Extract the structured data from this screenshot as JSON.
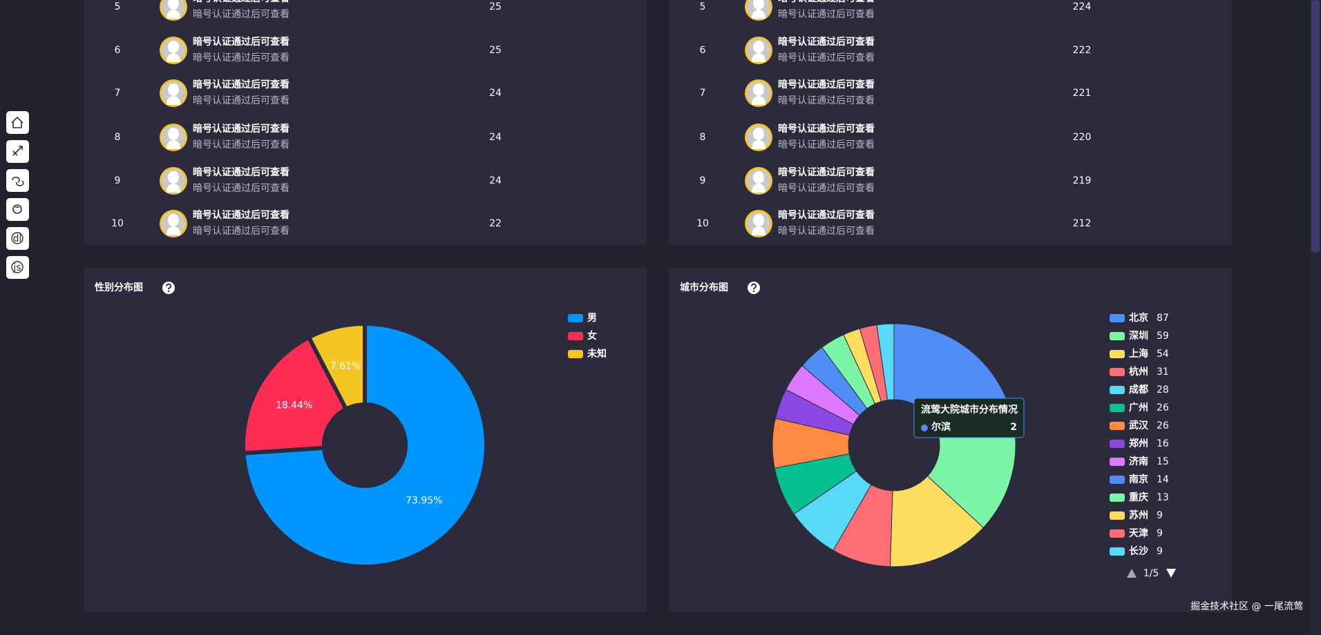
{
  "tables": [
    {
      "rows": [
        {
          "rank": 5,
          "name": "暗号认证通过后可查看",
          "subtitle": "暗号认证通过后可查看",
          "value": 25
        },
        {
          "rank": 6,
          "name": "暗号认证通过后可查看",
          "subtitle": "暗号认证通过后可查看",
          "value": 25
        },
        {
          "rank": 7,
          "name": "暗号认证通过后可查看",
          "subtitle": "暗号认证通过后可查看",
          "value": 24
        },
        {
          "rank": 8,
          "name": "暗号认证通过后可查看",
          "subtitle": "暗号认证通过后可查看",
          "value": 24
        },
        {
          "rank": 9,
          "name": "暗号认证通过后可查看",
          "subtitle": "暗号认证通过后可查看",
          "value": 24
        },
        {
          "rank": 10,
          "name": "暗号认证通过后可查看",
          "subtitle": "暗号认证通过后可查看",
          "value": 22
        }
      ]
    },
    {
      "rows": [
        {
          "rank": 5,
          "name": "暗号认证通过后可查看",
          "subtitle": "暗号认证通过后可查看",
          "value": 224
        },
        {
          "rank": 6,
          "name": "暗号认证通过后可查看",
          "subtitle": "暗号认证通过后可查看",
          "value": 222
        },
        {
          "rank": 7,
          "name": "暗号认证通过后可查看",
          "subtitle": "暗号认证通过后可查看",
          "value": 221
        },
        {
          "rank": 8,
          "name": "暗号认证通过后可查看",
          "subtitle": "暗号认证通过后可查看",
          "value": 220
        },
        {
          "rank": 9,
          "name": "暗号认证通过后可查看",
          "subtitle": "暗号认证通过后可查看",
          "value": 219
        },
        {
          "rank": 10,
          "name": "暗号认证通过后可查看",
          "subtitle": "暗号认证通过后可查看",
          "value": 212
        }
      ]
    }
  ],
  "chart_data": [
    {
      "type": "pie",
      "title": "性别分布图",
      "categories": [
        "男",
        "女",
        "未知"
      ],
      "values": [
        73.95,
        18.44,
        7.61
      ],
      "value_labels": [
        "73.95%",
        "18.44%",
        "7.61%"
      ],
      "colors": [
        "#0095ff",
        "#ff2d55",
        "#f5c526"
      ]
    },
    {
      "type": "pie",
      "title": "城市分布图",
      "categories": [
        "北京",
        "深圳",
        "上海",
        "杭州",
        "成都",
        "广州",
        "武汉",
        "郑州",
        "济南",
        "南京",
        "重庆",
        "苏州",
        "天津",
        "长沙"
      ],
      "values": [
        87,
        59,
        54,
        31,
        28,
        26,
        26,
        16,
        15,
        14,
        13,
        9,
        9,
        9
      ],
      "colors": [
        "#4f8ef7",
        "#7cf6a6",
        "#fddd60",
        "#ff6e76",
        "#58d9f9",
        "#05c091",
        "#ff8a45",
        "#8d48e3",
        "#dd79ff",
        "#4f8ef7",
        "#7cf6a6",
        "#fddd60",
        "#ff6e76",
        "#58d9f9"
      ],
      "legend_page": "1/5",
      "tooltip": {
        "title": "流莺大院城市分布情况",
        "name": "尔滨",
        "value": 2,
        "color": "#4f8ef7"
      }
    }
  ],
  "sidebar": {
    "icons": [
      "dl",
      "js"
    ]
  },
  "watermark": "掘金技术社区 @ 一尾流莺"
}
